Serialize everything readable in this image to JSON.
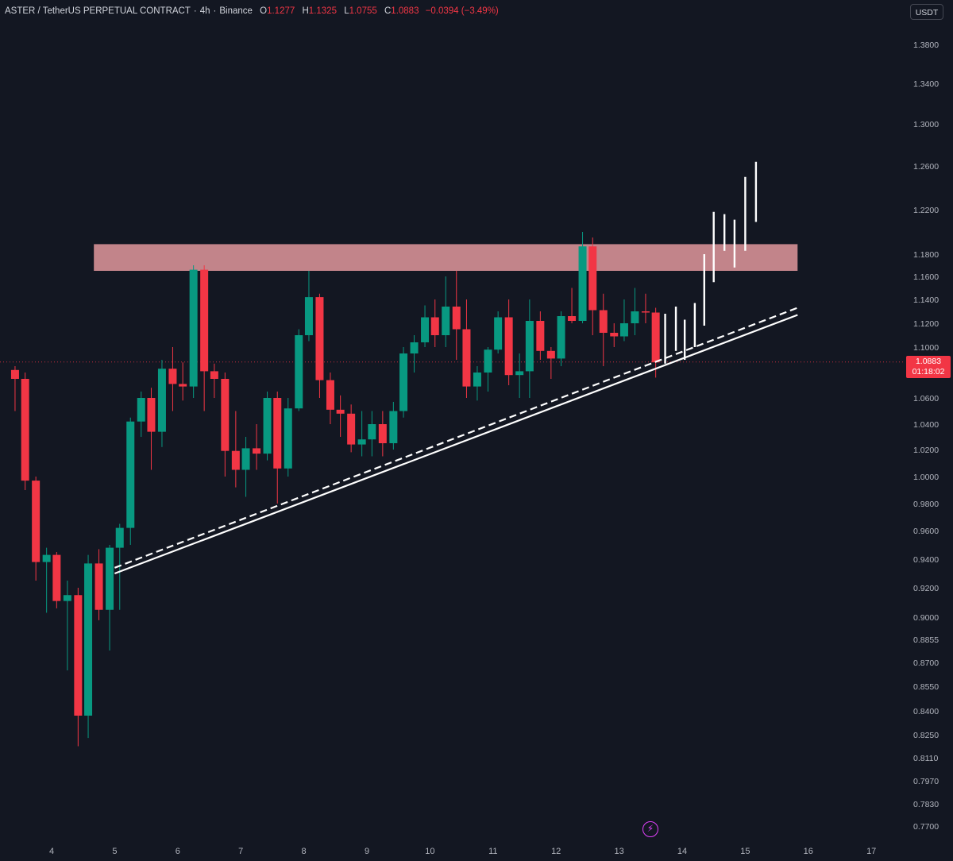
{
  "header": {
    "symbol": "ASTER / TetherUS PERPETUAL CONTRACT",
    "timeframe": "4h",
    "exchange": "Binance",
    "open_label": "O",
    "open": "1.1277",
    "high_label": "H",
    "high": "1.1325",
    "low_label": "L",
    "low": "1.0755",
    "close_label": "C",
    "close": "1.0883",
    "change": "−0.0394 (−3.49%)"
  },
  "currency_button": "USDT",
  "last_price": {
    "value": "1.0883",
    "countdown": "01:18:02",
    "color": "#f23645"
  },
  "colors": {
    "up": "#089981",
    "down": "#f23645",
    "background": "#131722",
    "zone": "#f4a3a8",
    "projection": "#ffffff"
  },
  "icons": [
    "lightning-bolt-icon"
  ],
  "chart_data": {
    "type": "candlestick",
    "price_axis_labels": [
      {
        "label": "1.3800",
        "v": 1.38
      },
      {
        "label": "1.3400",
        "v": 1.34
      },
      {
        "label": "1.3000",
        "v": 1.3
      },
      {
        "label": "1.2600",
        "v": 1.26
      },
      {
        "label": "1.2200",
        "v": 1.22
      },
      {
        "label": "1.1800",
        "v": 1.18
      },
      {
        "label": "1.1600",
        "v": 1.16
      },
      {
        "label": "1.1400",
        "v": 1.14
      },
      {
        "label": "1.1200",
        "v": 1.12
      },
      {
        "label": "1.1000",
        "v": 1.1
      },
      {
        "label": "1.0600",
        "v": 1.06
      },
      {
        "label": "1.0400",
        "v": 1.04
      },
      {
        "label": "1.0200",
        "v": 1.02
      },
      {
        "label": "1.0000",
        "v": 1.0
      },
      {
        "label": "0.9800",
        "v": 0.98
      },
      {
        "label": "0.9600",
        "v": 0.96
      },
      {
        "label": "0.9400",
        "v": 0.94
      },
      {
        "label": "0.9200",
        "v": 0.92
      },
      {
        "label": "0.9000",
        "v": 0.9
      },
      {
        "label": "0.8855",
        "v": 0.8855
      },
      {
        "label": "0.8700",
        "v": 0.87
      },
      {
        "label": "0.8550",
        "v": 0.855
      },
      {
        "label": "0.8400",
        "v": 0.84
      },
      {
        "label": "0.8250",
        "v": 0.825
      },
      {
        "label": "0.8110",
        "v": 0.811
      },
      {
        "label": "0.7970",
        "v": 0.797
      },
      {
        "label": "0.7830",
        "v": 0.783
      },
      {
        "label": "0.7700",
        "v": 0.77
      }
    ],
    "date_labels": [
      {
        "label": "4",
        "day": 4
      },
      {
        "label": "5",
        "day": 5
      },
      {
        "label": "6",
        "day": 6
      },
      {
        "label": "7",
        "day": 7
      },
      {
        "label": "8",
        "day": 8
      },
      {
        "label": "9",
        "day": 9
      },
      {
        "label": "10",
        "day": 10
      },
      {
        "label": "11",
        "day": 11
      },
      {
        "label": "12",
        "day": 12
      },
      {
        "label": "13",
        "day": 13
      },
      {
        "label": "14",
        "day": 14
      },
      {
        "label": "15",
        "day": 15
      },
      {
        "label": "16",
        "day": 16
      },
      {
        "label": "17",
        "day": 17
      }
    ],
    "candles": [
      {
        "day": 3.42,
        "o": 1.082,
        "h": 1.085,
        "l": 1.05,
        "c": 1.075
      },
      {
        "day": 3.58,
        "o": 1.075,
        "h": 1.08,
        "l": 0.99,
        "c": 0.997
      },
      {
        "day": 3.75,
        "o": 0.997,
        "h": 1.0,
        "l": 0.925,
        "c": 0.938
      },
      {
        "day": 3.92,
        "o": 0.938,
        "h": 0.948,
        "l": 0.903,
        "c": 0.943
      },
      {
        "day": 4.08,
        "o": 0.943,
        "h": 0.945,
        "l": 0.906,
        "c": 0.911
      },
      {
        "day": 4.25,
        "o": 0.911,
        "h": 0.925,
        "l": 0.865,
        "c": 0.915
      },
      {
        "day": 4.42,
        "o": 0.915,
        "h": 0.92,
        "l": 0.818,
        "c": 0.837
      },
      {
        "day": 4.58,
        "o": 0.837,
        "h": 0.943,
        "l": 0.823,
        "c": 0.937
      },
      {
        "day": 4.75,
        "o": 0.937,
        "h": 0.947,
        "l": 0.898,
        "c": 0.905
      },
      {
        "day": 4.92,
        "o": 0.905,
        "h": 0.95,
        "l": 0.878,
        "c": 0.948
      },
      {
        "day": 5.08,
        "o": 0.948,
        "h": 0.965,
        "l": 0.905,
        "c": 0.962
      },
      {
        "day": 5.25,
        "o": 0.962,
        "h": 1.045,
        "l": 0.95,
        "c": 1.042
      },
      {
        "day": 5.42,
        "o": 1.042,
        "h": 1.065,
        "l": 1.03,
        "c": 1.06
      },
      {
        "day": 5.58,
        "o": 1.06,
        "h": 1.068,
        "l": 1.005,
        "c": 1.034
      },
      {
        "day": 5.75,
        "o": 1.034,
        "h": 1.09,
        "l": 1.022,
        "c": 1.083
      },
      {
        "day": 5.92,
        "o": 1.083,
        "h": 1.1,
        "l": 1.05,
        "c": 1.071
      },
      {
        "day": 6.08,
        "o": 1.071,
        "h": 1.088,
        "l": 1.058,
        "c": 1.069
      },
      {
        "day": 6.25,
        "o": 1.069,
        "h": 1.17,
        "l": 1.06,
        "c": 1.166
      },
      {
        "day": 6.42,
        "o": 1.166,
        "h": 1.17,
        "l": 1.05,
        "c": 1.081
      },
      {
        "day": 6.58,
        "o": 1.081,
        "h": 1.087,
        "l": 1.06,
        "c": 1.075
      },
      {
        "day": 6.75,
        "o": 1.075,
        "h": 1.08,
        "l": 1.0,
        "c": 1.019
      },
      {
        "day": 6.92,
        "o": 1.019,
        "h": 1.05,
        "l": 0.992,
        "c": 1.005
      },
      {
        "day": 7.08,
        "o": 1.005,
        "h": 1.03,
        "l": 0.985,
        "c": 1.021
      },
      {
        "day": 7.25,
        "o": 1.021,
        "h": 1.04,
        "l": 1.005,
        "c": 1.017
      },
      {
        "day": 7.42,
        "o": 1.017,
        "h": 1.065,
        "l": 1.012,
        "c": 1.06
      },
      {
        "day": 7.58,
        "o": 1.06,
        "h": 1.065,
        "l": 0.98,
        "c": 1.006
      },
      {
        "day": 7.75,
        "o": 1.006,
        "h": 1.06,
        "l": 1.0,
        "c": 1.052
      },
      {
        "day": 7.92,
        "o": 1.052,
        "h": 1.115,
        "l": 1.05,
        "c": 1.11
      },
      {
        "day": 8.08,
        "o": 1.11,
        "h": 1.165,
        "l": 1.105,
        "c": 1.142
      },
      {
        "day": 8.25,
        "o": 1.142,
        "h": 1.145,
        "l": 1.06,
        "c": 1.074
      },
      {
        "day": 8.42,
        "o": 1.074,
        "h": 1.08,
        "l": 1.04,
        "c": 1.051
      },
      {
        "day": 8.58,
        "o": 1.051,
        "h": 1.062,
        "l": 1.03,
        "c": 1.048
      },
      {
        "day": 8.75,
        "o": 1.048,
        "h": 1.055,
        "l": 1.018,
        "c": 1.024
      },
      {
        "day": 8.92,
        "o": 1.024,
        "h": 1.05,
        "l": 1.015,
        "c": 1.028
      },
      {
        "day": 9.08,
        "o": 1.028,
        "h": 1.05,
        "l": 1.015,
        "c": 1.04
      },
      {
        "day": 9.25,
        "o": 1.04,
        "h": 1.05,
        "l": 1.015,
        "c": 1.025
      },
      {
        "day": 9.42,
        "o": 1.025,
        "h": 1.057,
        "l": 1.02,
        "c": 1.05
      },
      {
        "day": 9.58,
        "o": 1.05,
        "h": 1.1,
        "l": 1.045,
        "c": 1.095
      },
      {
        "day": 9.75,
        "o": 1.095,
        "h": 1.11,
        "l": 1.08,
        "c": 1.104
      },
      {
        "day": 9.92,
        "o": 1.104,
        "h": 1.135,
        "l": 1.1,
        "c": 1.125
      },
      {
        "day": 10.08,
        "o": 1.125,
        "h": 1.14,
        "l": 1.1,
        "c": 1.11
      },
      {
        "day": 10.25,
        "o": 1.11,
        "h": 1.16,
        "l": 1.1,
        "c": 1.134
      },
      {
        "day": 10.42,
        "o": 1.134,
        "h": 1.165,
        "l": 1.09,
        "c": 1.115
      },
      {
        "day": 10.58,
        "o": 1.115,
        "h": 1.14,
        "l": 1.06,
        "c": 1.069
      },
      {
        "day": 10.75,
        "o": 1.069,
        "h": 1.085,
        "l": 1.058,
        "c": 1.08
      },
      {
        "day": 10.92,
        "o": 1.08,
        "h": 1.1,
        "l": 1.065,
        "c": 1.098
      },
      {
        "day": 11.08,
        "o": 1.098,
        "h": 1.13,
        "l": 1.095,
        "c": 1.125
      },
      {
        "day": 11.25,
        "o": 1.125,
        "h": 1.14,
        "l": 1.07,
        "c": 1.078
      },
      {
        "day": 11.42,
        "o": 1.078,
        "h": 1.095,
        "l": 1.06,
        "c": 1.081
      },
      {
        "day": 11.58,
        "o": 1.081,
        "h": 1.14,
        "l": 1.06,
        "c": 1.122
      },
      {
        "day": 11.75,
        "o": 1.122,
        "h": 1.13,
        "l": 1.09,
        "c": 1.097
      },
      {
        "day": 11.92,
        "o": 1.097,
        "h": 1.1,
        "l": 1.075,
        "c": 1.091
      },
      {
        "day": 12.08,
        "o": 1.091,
        "h": 1.13,
        "l": 1.085,
        "c": 1.126
      },
      {
        "day": 12.25,
        "o": 1.126,
        "h": 1.15,
        "l": 1.12,
        "c": 1.122
      },
      {
        "day": 12.42,
        "o": 1.122,
        "h": 1.2,
        "l": 1.12,
        "c": 1.187
      },
      {
        "day": 12.58,
        "o": 1.187,
        "h": 1.195,
        "l": 1.11,
        "c": 1.131
      },
      {
        "day": 12.75,
        "o": 1.131,
        "h": 1.145,
        "l": 1.085,
        "c": 1.112
      },
      {
        "day": 12.92,
        "o": 1.112,
        "h": 1.12,
        "l": 1.1,
        "c": 1.109
      },
      {
        "day": 13.08,
        "o": 1.109,
        "h": 1.14,
        "l": 1.105,
        "c": 1.12
      },
      {
        "day": 13.25,
        "o": 1.12,
        "h": 1.15,
        "l": 1.11,
        "c": 1.13
      },
      {
        "day": 13.42,
        "o": 1.13,
        "h": 1.145,
        "l": 1.12,
        "c": 1.129
      },
      {
        "day": 13.58,
        "o": 1.129,
        "h": 1.133,
        "l": 1.076,
        "c": 1.088
      }
    ],
    "resistance_zone": {
      "start_day": 4.67,
      "end_day": 15.83,
      "low": 1.165,
      "high": 1.189
    },
    "trendlines": [
      {
        "style": "solid",
        "from": {
          "day": 5.0,
          "price": 0.93
        },
        "to": {
          "day": 15.83,
          "price": 1.127
        }
      },
      {
        "style": "dashed",
        "from": {
          "day": 5.0,
          "price": 0.934
        },
        "to": {
          "day": 15.83,
          "price": 1.133
        }
      }
    ],
    "projection_bars": [
      {
        "day": 13.73,
        "low": 1.087,
        "high": 1.128
      },
      {
        "day": 13.9,
        "low": 1.097,
        "high": 1.134
      },
      {
        "day": 14.04,
        "low": 1.09,
        "high": 1.123
      },
      {
        "day": 14.2,
        "low": 1.1,
        "high": 1.137
      },
      {
        "day": 14.35,
        "low": 1.118,
        "high": 1.18
      },
      {
        "day": 14.5,
        "low": 1.155,
        "high": 1.218
      },
      {
        "day": 14.67,
        "low": 1.183,
        "high": 1.216
      },
      {
        "day": 14.83,
        "low": 1.168,
        "high": 1.211
      },
      {
        "day": 15.0,
        "low": 1.183,
        "high": 1.25
      },
      {
        "day": 15.17,
        "low": 1.209,
        "high": 1.264
      }
    ],
    "last_price_line": 1.0883,
    "grid": false
  }
}
